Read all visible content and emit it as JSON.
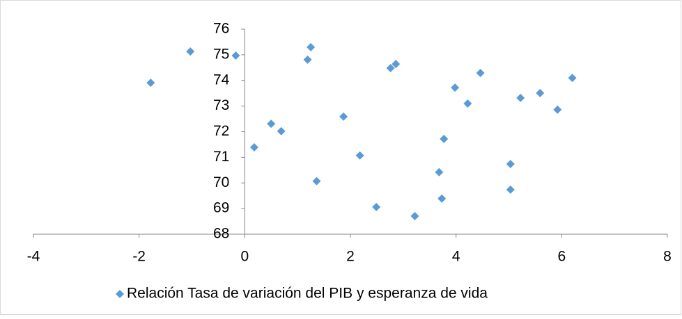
{
  "chart_data": {
    "type": "scatter",
    "series": [
      {
        "name": "Relación Tasa de variación del PIB y esperanza de vida",
        "color": "#5b9bd5",
        "x": [
          -1.78,
          -1.03,
          -0.17,
          0.18,
          0.5,
          0.69,
          1.19,
          1.25,
          1.36,
          1.87,
          2.18,
          2.49,
          2.76,
          2.86,
          3.22,
          3.68,
          3.73,
          3.77,
          3.98,
          4.22,
          4.46,
          5.03,
          5.03,
          5.22,
          5.59,
          5.92,
          6.2
        ],
        "values": [
          73.91,
          75.13,
          74.97,
          71.39,
          72.31,
          72.02,
          74.81,
          75.3,
          70.07,
          72.59,
          71.07,
          69.06,
          74.48,
          74.64,
          68.71,
          70.42,
          69.39,
          71.72,
          73.72,
          73.1,
          74.29,
          69.74,
          70.74,
          73.32,
          73.51,
          72.86,
          74.1
        ]
      }
    ],
    "xlim": [
      -4,
      8
    ],
    "xticks": [
      -4,
      -2,
      0,
      2,
      4,
      6,
      8
    ],
    "ylim": [
      68,
      76
    ],
    "yticks": [
      68,
      69,
      70,
      71,
      72,
      73,
      74,
      75,
      76
    ],
    "legend": "bottom"
  }
}
